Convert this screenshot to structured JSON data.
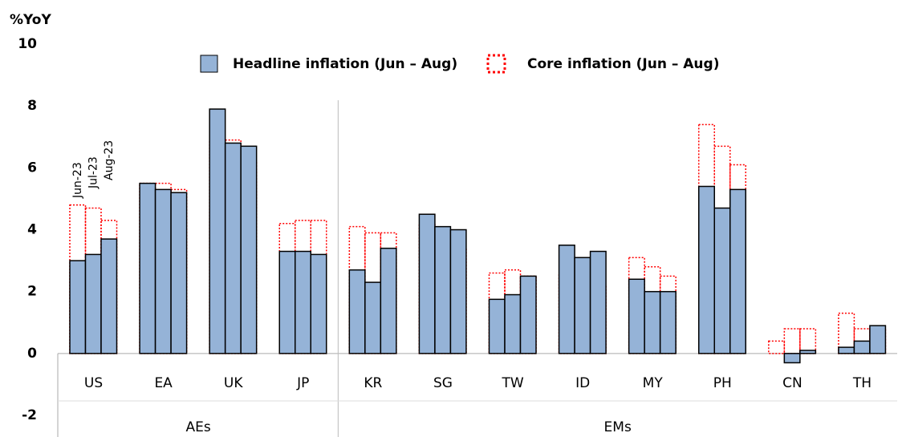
{
  "chart_data": {
    "type": "bar",
    "y_axis_label": "%YoY",
    "categories": [
      "US",
      "EA",
      "UK",
      "JP",
      "KR",
      "SG",
      "TW",
      "ID",
      "MY",
      "PH",
      "CN",
      "TH"
    ],
    "groups": [
      "AEs",
      "EMs"
    ],
    "bar_labels": [
      "Jun-23",
      "Jul-23",
      "Aug-23"
    ],
    "series": [
      {
        "name": "Headline inflation (Jun – Aug)",
        "color": "#95b3d7",
        "style": "solid",
        "values": [
          [
            3.0,
            3.2,
            3.7
          ],
          [
            5.5,
            5.3,
            5.2
          ],
          [
            7.9,
            6.8,
            6.7
          ],
          [
            3.3,
            3.3,
            3.2
          ],
          [
            2.7,
            2.3,
            3.4
          ],
          [
            4.5,
            4.1,
            4.0
          ],
          [
            1.75,
            1.9,
            2.5
          ],
          [
            3.5,
            3.1,
            3.3
          ],
          [
            2.4,
            2.0,
            2.0
          ],
          [
            5.4,
            4.7,
            5.3
          ],
          [
            0.0,
            -0.3,
            0.1
          ],
          [
            0.2,
            0.4,
            0.9
          ]
        ]
      },
      {
        "name": "Core inflation (Jun – Aug)",
        "color": "#ff0000",
        "style": "dotted",
        "values": [
          [
            4.8,
            4.7,
            4.3
          ],
          [
            5.5,
            5.5,
            5.3
          ],
          [
            6.9,
            6.9,
            6.2
          ],
          [
            4.2,
            4.3,
            4.3
          ],
          [
            4.1,
            3.9,
            3.9
          ],
          [
            4.2,
            3.8,
            3.4
          ],
          [
            2.6,
            2.7,
            2.5
          ],
          [
            2.6,
            2.4,
            2.2
          ],
          [
            3.1,
            2.8,
            2.5
          ],
          [
            7.4,
            6.7,
            6.1
          ],
          [
            0.4,
            0.8,
            0.8
          ],
          [
            1.3,
            0.8,
            0.8
          ]
        ]
      }
    ],
    "ylim": [
      -2,
      10
    ],
    "yticks": [
      -2,
      0,
      2,
      4,
      6,
      8,
      10
    ],
    "grid": false
  }
}
